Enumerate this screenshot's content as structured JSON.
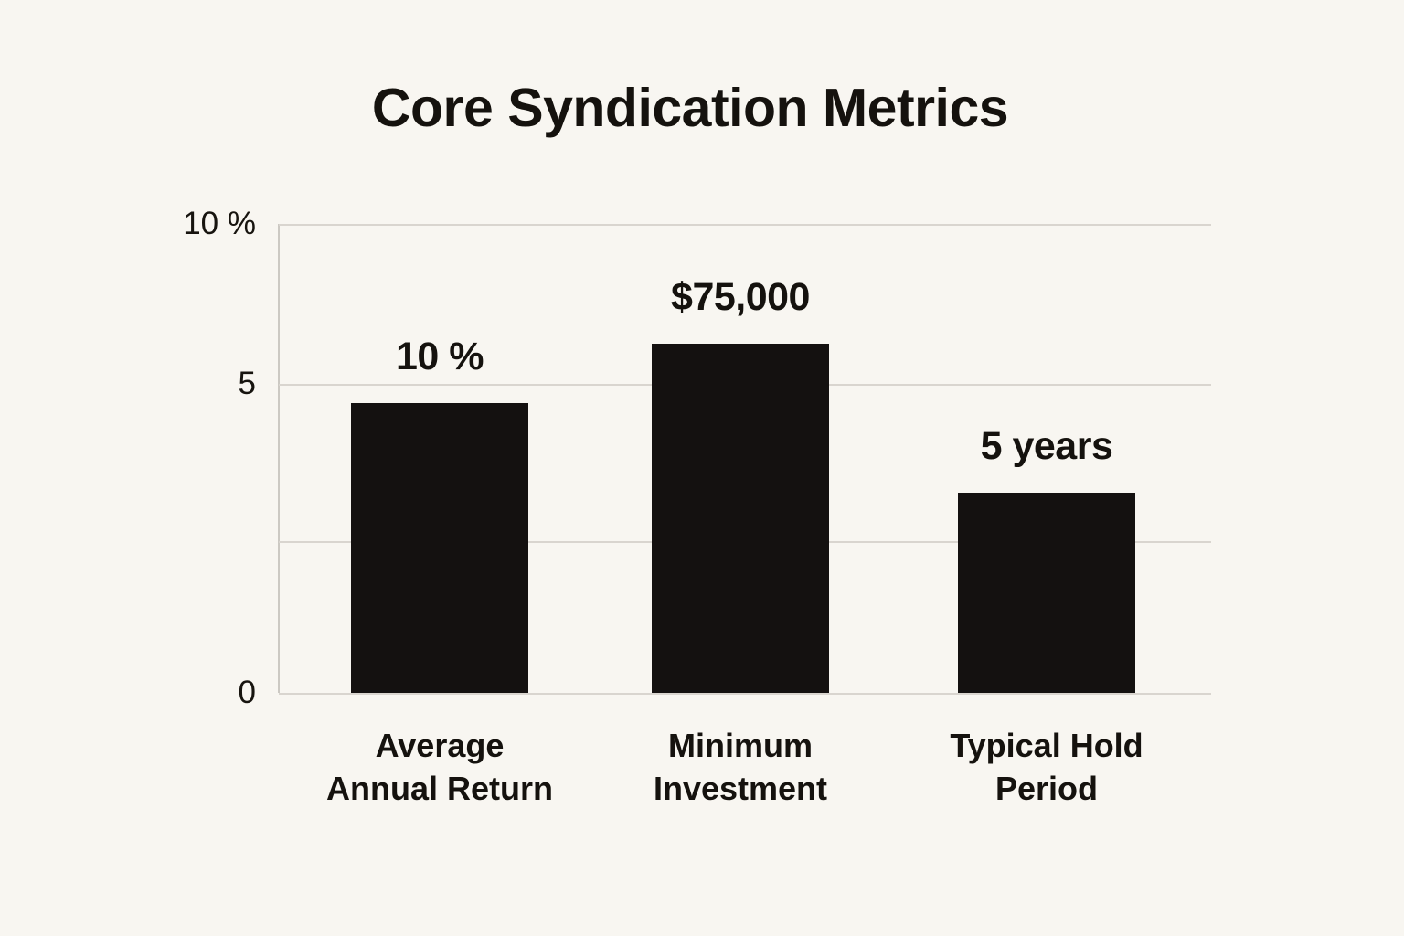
{
  "page": {
    "background_color": "#f8f6f1",
    "text_color": "#15120e"
  },
  "chart_data": {
    "type": "bar",
    "title": "Core Syndication Metrics",
    "xlabel": "",
    "ylabel": "",
    "grid": true,
    "legend": false,
    "categories": [
      "Average Annual Return",
      "Minimum Investment",
      "Typical Hold Period"
    ],
    "bars": [
      {
        "category_lines": [
          "Average",
          "Annual Return"
        ],
        "value_label": "10 %",
        "value": 10,
        "unit": "percent",
        "height_frac": 0.618,
        "center_frac": 0.173
      },
      {
        "category_lines": [
          "Minimum",
          "Investment"
        ],
        "value_label": "$75,000",
        "value": 75000,
        "unit": "USD",
        "height_frac": 0.745,
        "center_frac": 0.495
      },
      {
        "category_lines": [
          "Typical Hold",
          "Period"
        ],
        "value_label": "5 years",
        "value": 5,
        "unit": "years",
        "height_frac": 0.427,
        "center_frac": 0.824
      }
    ],
    "bar_width_frac": 0.19,
    "y_axis": {
      "ticks": [
        {
          "label": "10 %",
          "frac": 0.0
        },
        {
          "label": "5",
          "frac": 0.341
        },
        {
          "label": "",
          "frac": 0.676
        },
        {
          "label": "0",
          "frac": 1.0
        }
      ]
    },
    "colors": {
      "bar": "#141110",
      "gridline": "#d9d5cf",
      "axis_line": "#ccc9c3",
      "background": "#f8f6f1",
      "text": "#15120e"
    }
  }
}
